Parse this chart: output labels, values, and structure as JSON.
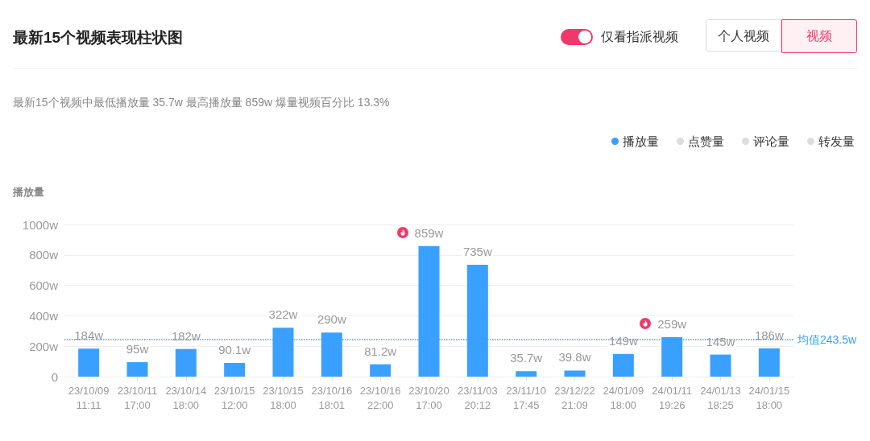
{
  "chart_data": {
    "type": "bar",
    "title": "最新15个视频表现柱状图",
    "subtitle": "最新15个视频中最低播放量 35.7w 最高播放量 859w 爆量视频百分比 13.3%",
    "ylabel": "播放量",
    "annotations": [
      "仅看指派视频",
      "个人视频",
      "视频"
    ],
    "categories": [
      "23/10/09 11:11",
      "23/10/11 17:00",
      "23/10/14 18:00",
      "23/10/15 12:00",
      "23/10/15 18:00",
      "23/10/16 18:01",
      "23/10/16 22:00",
      "23/10/20 17:00",
      "23/11/03 20:12",
      "23/11/10 17:45",
      "23/12/22 21:09",
      "24/01/09 18:00",
      "24/01/11 19:26",
      "24/01/13 18:25",
      "24/01/15 18:00"
    ],
    "series": [
      {
        "name": "播放量",
        "color": "#3aa0ff",
        "values": [
          184,
          95,
          182,
          90.1,
          322,
          290,
          81.2,
          859,
          735,
          35.7,
          39.8,
          149,
          259,
          145,
          186
        ],
        "value_labels": [
          "184w",
          "95w",
          "182w",
          "90.1w",
          "322w",
          "290w",
          "81.2w",
          "859w",
          "735w",
          "35.7w",
          "39.8w",
          "149w",
          "259w",
          "145w",
          "186w"
        ]
      },
      {
        "name": "点赞量",
        "color": "#dddddd",
        "values": [
          null,
          null,
          null,
          null,
          null,
          null,
          null,
          null,
          null,
          null,
          null,
          null,
          null,
          null,
          null
        ]
      },
      {
        "name": "评论量",
        "color": "#dddddd",
        "values": [
          null,
          null,
          null,
          null,
          null,
          null,
          null,
          null,
          null,
          null,
          null,
          null,
          null,
          null,
          null
        ]
      },
      {
        "name": "转发量",
        "color": "#dddddd",
        "values": [
          null,
          null,
          null,
          null,
          null,
          null,
          null,
          null,
          null,
          null,
          null,
          null,
          null,
          null,
          null
        ]
      }
    ],
    "ylim": [
      0,
      1000
    ],
    "yticks": [
      0,
      {
        "value": 200,
        "label": "200w"
      },
      {
        "value": 400,
        "label": "400w"
      },
      {
        "value": 600,
        "label": "600w"
      },
      {
        "value": 800,
        "label": "800w"
      },
      {
        "value": 1000,
        "label": "1000w"
      }
    ],
    "ref_lines": [
      {
        "axis": "y",
        "value": 243.5,
        "label": "均值243.5w",
        "color": "#3aa0ff",
        "line_style": "dotted"
      }
    ],
    "grid": "y",
    "legend": "top right"
  }
}
